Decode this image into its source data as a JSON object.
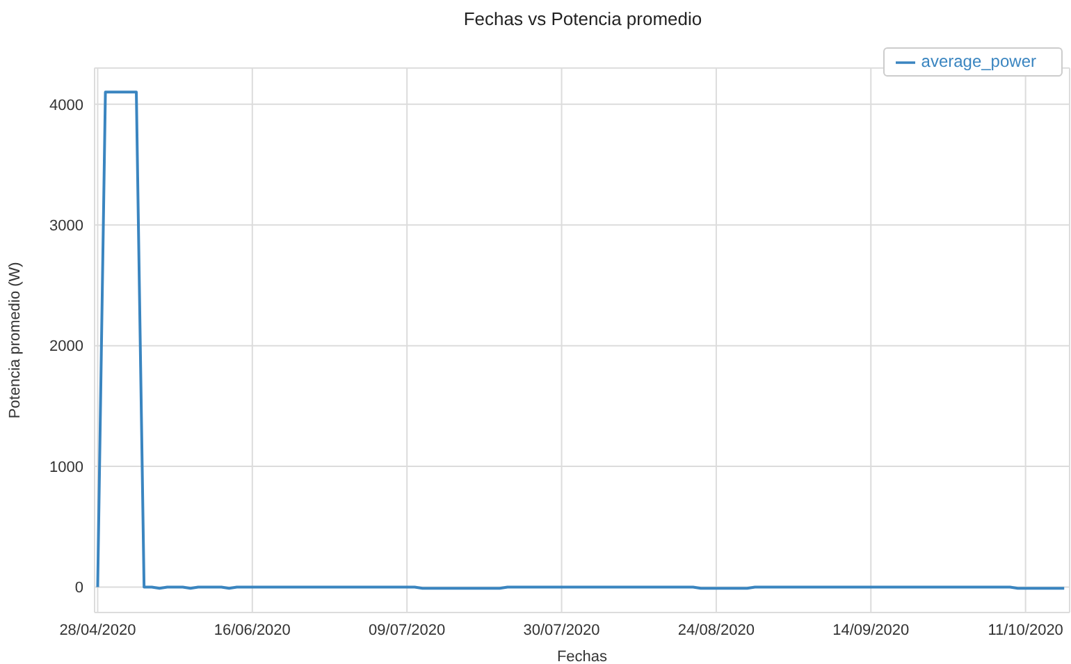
{
  "chart_data": {
    "type": "line",
    "title": "Fechas vs Potencia promedio",
    "xlabel": "Fechas",
    "ylabel": "Potencia promedio (W)",
    "categories": [
      "28/04/2020",
      null,
      null,
      null,
      null,
      null,
      null,
      null,
      null,
      null,
      null,
      null,
      null,
      null,
      null,
      null,
      null,
      null,
      null,
      null,
      "16/06/2020",
      null,
      null,
      null,
      null,
      null,
      null,
      null,
      null,
      null,
      null,
      null,
      null,
      null,
      null,
      null,
      null,
      null,
      null,
      null,
      "09/07/2020",
      null,
      null,
      null,
      null,
      null,
      null,
      null,
      null,
      null,
      null,
      null,
      null,
      null,
      null,
      null,
      null,
      null,
      null,
      null,
      "30/07/2020",
      null,
      null,
      null,
      null,
      null,
      null,
      null,
      null,
      null,
      null,
      null,
      null,
      null,
      null,
      null,
      null,
      null,
      null,
      null,
      "24/08/2020",
      null,
      null,
      null,
      null,
      null,
      null,
      null,
      null,
      null,
      null,
      null,
      null,
      null,
      null,
      null,
      null,
      null,
      null,
      null,
      "14/09/2020",
      null,
      null,
      null,
      null,
      null,
      null,
      null,
      null,
      null,
      null,
      null,
      null,
      null,
      null,
      null,
      null,
      null,
      null,
      null,
      "11/10/2020",
      null,
      null,
      null,
      null,
      null
    ],
    "series": [
      {
        "name": "average_power",
        "color": "#3a85c0",
        "values": [
          0,
          4100,
          4100,
          4100,
          4100,
          4100,
          0,
          0,
          -10,
          0,
          0,
          0,
          -10,
          0,
          0,
          0,
          0,
          -10,
          0,
          0,
          0,
          0,
          0,
          0,
          0,
          0,
          0,
          0,
          0,
          0,
          0,
          0,
          0,
          0,
          0,
          0,
          0,
          0,
          0,
          0,
          0,
          0,
          -10,
          -10,
          -10,
          -10,
          -10,
          -10,
          -10,
          -10,
          -10,
          -10,
          -10,
          0,
          0,
          0,
          0,
          0,
          0,
          0,
          0,
          0,
          0,
          0,
          0,
          0,
          0,
          0,
          0,
          0,
          0,
          0,
          0,
          0,
          0,
          0,
          0,
          0,
          -10,
          -10,
          -10,
          -10,
          -10,
          -10,
          -10,
          0,
          0,
          0,
          0,
          0,
          0,
          0,
          0,
          0,
          0,
          0,
          0,
          0,
          0,
          0,
          0,
          0,
          0,
          0,
          0,
          0,
          0,
          0,
          0,
          0,
          0,
          0,
          0,
          0,
          0,
          0,
          0,
          0,
          0,
          -10,
          -10,
          -10,
          -10,
          -10,
          -10,
          -10
        ]
      }
    ],
    "ylim": [
      -210,
      4300
    ],
    "yticks": [
      0,
      1000,
      2000,
      3000,
      4000
    ],
    "grid": true,
    "legend": "top right"
  }
}
